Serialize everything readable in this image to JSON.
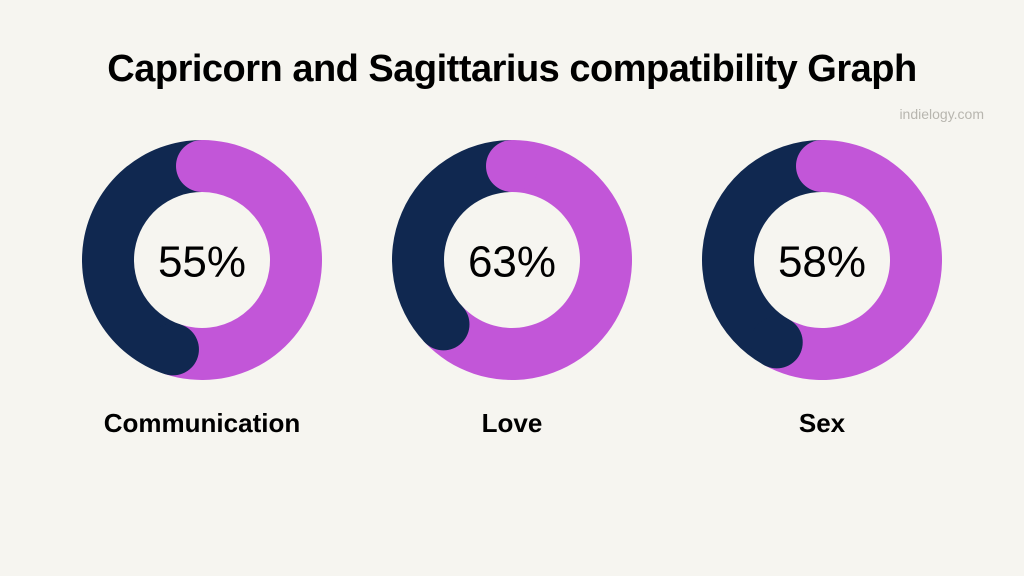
{
  "title": "Capricorn and Sagittarius compatibility Graph",
  "title_fontsize": 38,
  "watermark": "indielogy.com",
  "background_color": "#f6f5f0",
  "donuts": [
    {
      "label": "Communication",
      "percent": 55,
      "display": "55%"
    },
    {
      "label": "Love",
      "percent": 63,
      "display": "63%"
    },
    {
      "label": "Sex",
      "percent": 58,
      "display": "58%"
    }
  ],
  "donut_style": {
    "size": 240,
    "thickness": 52,
    "primary_color": "#c256d8",
    "secondary_color": "#102850",
    "center_fontsize": 44,
    "label_fontsize": 26,
    "start_angle_deg": 0,
    "direction": "clockwise"
  }
}
